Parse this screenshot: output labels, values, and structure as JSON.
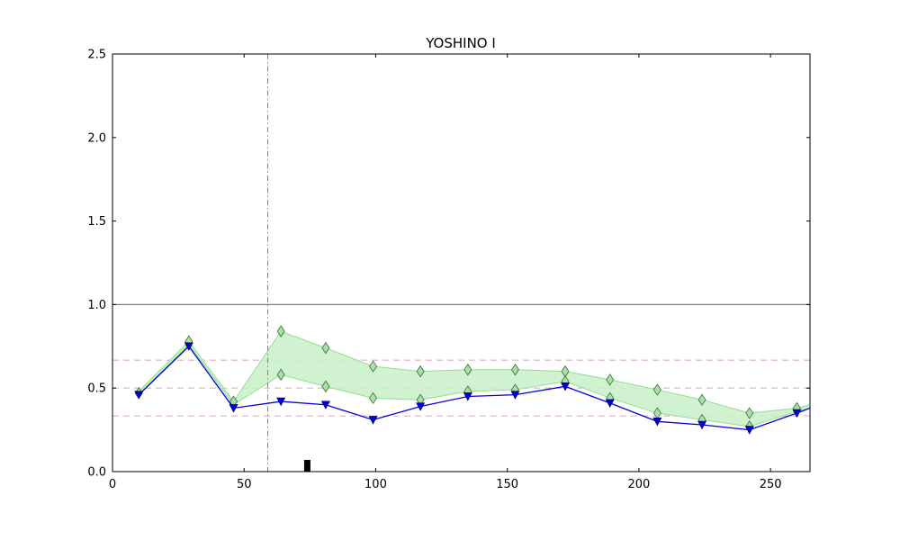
{
  "chart_data": {
    "type": "line",
    "title": "YOSHINO I",
    "xlabel": "",
    "ylabel": "",
    "xlim": [
      0,
      265
    ],
    "ylim": [
      0,
      2.5
    ],
    "x_ticks": [
      0,
      50,
      100,
      150,
      200,
      250
    ],
    "y_ticks": [
      0.0,
      0.5,
      1.0,
      1.5,
      2.0,
      2.5
    ],
    "x_tick_labels": [
      "0",
      "50",
      "100",
      "150",
      "200",
      "250"
    ],
    "y_tick_labels": [
      "0.0",
      "0.5",
      "1.0",
      "1.5",
      "2.0",
      "2.5"
    ],
    "grid": false,
    "legend": "none",
    "reference_lines": {
      "solid_horizontal": 1.0,
      "dashed_horizontal": [
        0.667,
        0.5,
        0.333
      ],
      "dashdot_vertical": 59
    },
    "marker_bar": {
      "x": 74,
      "height": 0.07
    },
    "band": {
      "x": [
        10,
        29,
        46,
        64,
        81,
        99,
        117,
        135,
        153,
        172,
        189,
        207,
        224,
        242,
        260,
        265
      ],
      "upper": [
        0.48,
        0.78,
        0.42,
        0.84,
        0.74,
        0.63,
        0.6,
        0.61,
        0.61,
        0.6,
        0.55,
        0.49,
        0.43,
        0.35,
        0.38,
        0.4
      ],
      "lower": [
        0.46,
        0.76,
        0.4,
        0.58,
        0.51,
        0.44,
        0.43,
        0.48,
        0.49,
        0.54,
        0.44,
        0.35,
        0.31,
        0.27,
        0.36,
        0.38
      ]
    },
    "series": [
      {
        "name": "",
        "color": "#0000dd",
        "marker": "triangle-down",
        "x": [
          10,
          29,
          46,
          64,
          81,
          99,
          117,
          135,
          153,
          172,
          189,
          207,
          224,
          242,
          260,
          265
        ],
        "values": [
          0.46,
          0.75,
          0.38,
          0.42,
          0.4,
          0.31,
          0.39,
          0.45,
          0.46,
          0.51,
          0.41,
          0.3,
          0.28,
          0.25,
          0.35,
          0.38
        ]
      }
    ],
    "diamond_markers": {
      "x": [
        10,
        29,
        46,
        64,
        64,
        81,
        81,
        99,
        99,
        117,
        117,
        135,
        135,
        153,
        153,
        172,
        172,
        189,
        189,
        207,
        207,
        224,
        224,
        242,
        242,
        260
      ],
      "values": [
        0.47,
        0.78,
        0.42,
        0.84,
        0.58,
        0.74,
        0.51,
        0.63,
        0.44,
        0.6,
        0.43,
        0.61,
        0.48,
        0.61,
        0.49,
        0.6,
        0.54,
        0.55,
        0.44,
        0.49,
        0.35,
        0.43,
        0.31,
        0.35,
        0.27,
        0.38
      ]
    },
    "colors": {
      "line": "#0000dd",
      "band_fill": "#c8f0c8",
      "band_edge": "#90e090",
      "diamond_fill": "#a8e0a8",
      "reference_solid": "#808080",
      "reference_dashed": "#e0b0c8",
      "reference_dashdot": "#808080",
      "marker_bar": "#000000"
    }
  }
}
